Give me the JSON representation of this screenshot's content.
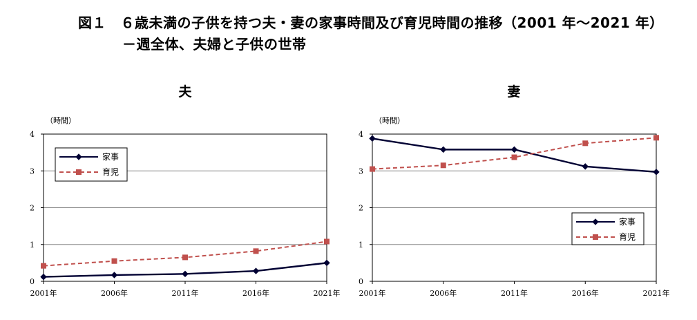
{
  "figure": {
    "title_line1": "図１　６歳未満の子供を持つ夫・妻の家事時間及び育児時間の推移（2001 年～2021 年）",
    "title_line2": "－週全体、夫婦と子供の世帯"
  },
  "colors": {
    "housework": "#000033",
    "childcare": "#c0504d",
    "grid": "#888888"
  },
  "chart_data": [
    {
      "type": "line",
      "title": "夫",
      "ylabel": "（時間）",
      "categories": [
        "2001年",
        "2006年",
        "2011年",
        "2016年",
        "2021年"
      ],
      "ylim": [
        0,
        4
      ],
      "yticks": [
        "0",
        "1",
        "2",
        "3",
        "4"
      ],
      "legend_position": "top-left",
      "series": [
        {
          "name": "家事",
          "values": [
            0.12,
            0.17,
            0.2,
            0.28,
            0.5
          ],
          "color": "#000033",
          "marker": "diamond",
          "style": "solid"
        },
        {
          "name": "育児",
          "values": [
            0.42,
            0.55,
            0.65,
            0.82,
            1.08
          ],
          "color": "#c0504d",
          "marker": "square",
          "style": "dashed"
        }
      ]
    },
    {
      "type": "line",
      "title": "妻",
      "ylabel": "（時間）",
      "categories": [
        "2001年",
        "2006年",
        "2011年",
        "2016年",
        "2021年"
      ],
      "ylim": [
        0,
        4
      ],
      "yticks": [
        "0",
        "1",
        "2",
        "3",
        "4"
      ],
      "legend_position": "bottom-right",
      "series": [
        {
          "name": "家事",
          "values": [
            3.88,
            3.58,
            3.58,
            3.12,
            2.97
          ],
          "color": "#000033",
          "marker": "diamond",
          "style": "solid"
        },
        {
          "name": "育児",
          "values": [
            3.05,
            3.15,
            3.37,
            3.75,
            3.9
          ],
          "color": "#c0504d",
          "marker": "square",
          "style": "dashed"
        }
      ]
    }
  ]
}
